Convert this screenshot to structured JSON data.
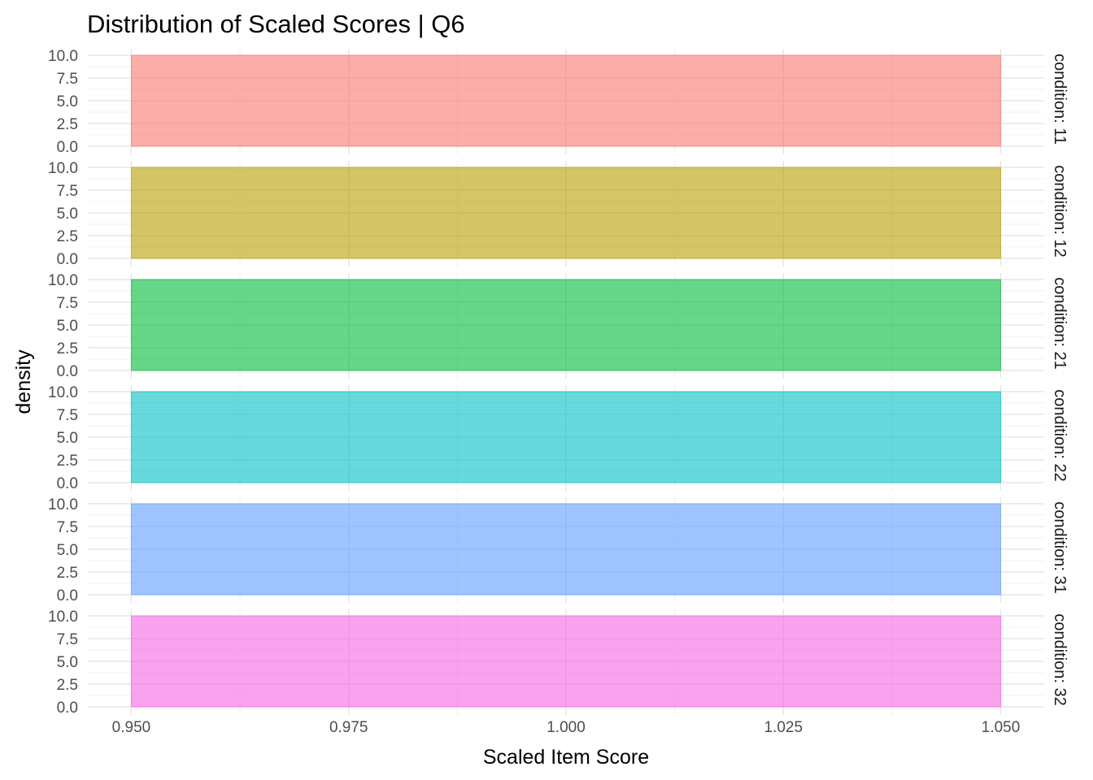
{
  "chart_data": {
    "type": "area",
    "title": "Distribution of Scaled Scores | Q6",
    "xlabel": "Scaled Item Score",
    "ylabel": "density",
    "xlim": [
      0.945,
      1.055
    ],
    "xticks": [
      0.95,
      0.975,
      1.0,
      1.025,
      1.05
    ],
    "xtick_labels": [
      "0.950",
      "0.975",
      "1.000",
      "1.025",
      "1.050"
    ],
    "ylim": [
      0,
      10
    ],
    "yticks": [
      0,
      2.5,
      5,
      7.5,
      10
    ],
    "ytick_labels": [
      "0.0",
      "2.5",
      "5.0",
      "7.5",
      "10.0"
    ],
    "grid": true,
    "facet_variable": "condition",
    "facets": [
      {
        "label": "condition: 11",
        "color": "#F8766D",
        "x": [
          0.95,
          1.05
        ],
        "y": [
          10,
          10
        ]
      },
      {
        "label": "condition: 12",
        "color": "#B79F00",
        "x": [
          0.95,
          1.05
        ],
        "y": [
          10,
          10
        ]
      },
      {
        "label": "condition: 21",
        "color": "#00BA38",
        "x": [
          0.95,
          1.05
        ],
        "y": [
          10,
          10
        ]
      },
      {
        "label": "condition: 22",
        "color": "#00BFC4",
        "x": [
          0.95,
          1.05
        ],
        "y": [
          10,
          10
        ]
      },
      {
        "label": "condition: 31",
        "color": "#619CFF",
        "x": [
          0.95,
          1.05
        ],
        "y": [
          10,
          10
        ]
      },
      {
        "label": "condition: 32",
        "color": "#F564E3",
        "x": [
          0.95,
          1.05
        ],
        "y": [
          10,
          10
        ]
      }
    ]
  }
}
